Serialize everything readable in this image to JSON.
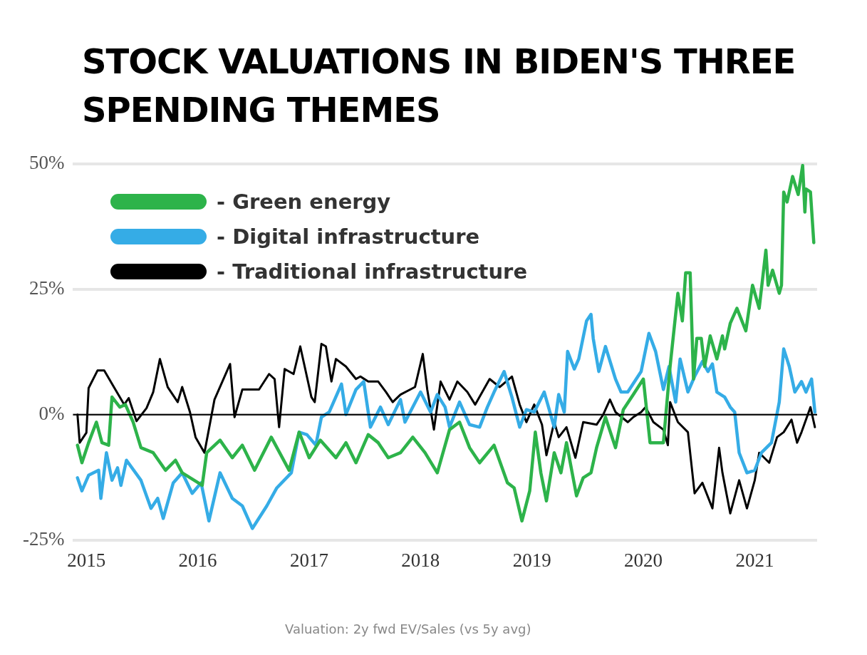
{
  "chart_data": {
    "type": "line",
    "title": "STOCK VALUATIONS IN BIDEN'S THREE SPENDING THEMES",
    "annotations": [
      "Valuation: 2y fwd EV/Sales (vs 5y avg)"
    ],
    "xlim": [
      2014.88,
      2021.56
    ],
    "xticks": [
      2015,
      2016,
      2017,
      2018,
      2019,
      2020,
      2021
    ],
    "ylim": [
      -25,
      50
    ],
    "yticks": [
      {
        "value": -25,
        "label": "-25%"
      },
      {
        "value": 0,
        "label": "0%"
      },
      {
        "value": 25,
        "label": "25%"
      },
      {
        "value": 50,
        "label": "50%"
      }
    ],
    "grid": "y",
    "legend": "top left",
    "marker": "none",
    "line_style": "solid",
    "ref_lines": [
      {
        "axis": "y",
        "value": 0,
        "label": null,
        "color": "#000000"
      }
    ],
    "series": [
      {
        "name": "- Green energy",
        "color": "#2db34a",
        "x": [
          2014.92,
          2014.96,
          2015.02,
          2015.09,
          2015.14,
          2015.2,
          2015.23,
          2015.3,
          2015.35,
          2015.42,
          2015.49,
          2015.6,
          2015.71,
          2015.8,
          2015.86,
          2016.04,
          2016.08,
          2016.2,
          2016.31,
          2016.4,
          2016.51,
          2016.66,
          2016.82,
          2016.91,
          2017.0,
          2017.1,
          2017.24,
          2017.33,
          2017.42,
          2017.53,
          2017.62,
          2017.71,
          2017.82,
          2017.93,
          2018.04,
          2018.15,
          2018.26,
          2018.35,
          2018.44,
          2018.53,
          2018.66,
          2018.78,
          2018.84,
          2018.91,
          2018.98,
          2019.03,
          2019.08,
          2019.13,
          2019.2,
          2019.26,
          2019.31,
          2019.4,
          2019.46,
          2019.53,
          2019.58,
          2019.66,
          2019.75,
          2019.82,
          2019.91,
          2020.0,
          2020.06,
          2020.18,
          2020.24,
          2020.31,
          2020.35,
          2020.38,
          2020.42,
          2020.45,
          2020.48,
          2020.52,
          2020.55,
          2020.6,
          2020.66,
          2020.71,
          2020.73,
          2020.78,
          2020.84,
          2020.92,
          2020.98,
          2021.04,
          2021.1,
          2021.12,
          2021.16,
          2021.22,
          2021.24,
          2021.26,
          2021.29,
          2021.34,
          2021.39,
          2021.43,
          2021.45,
          2021.46,
          2021.5,
          2021.53
        ],
        "values": [
          -6.1,
          -9.6,
          -5.6,
          -1.5,
          -5.6,
          -6.1,
          3.5,
          1.5,
          2.0,
          -1.5,
          -6.6,
          -7.6,
          -11.1,
          -9.1,
          -11.6,
          -14.1,
          -7.6,
          -5.1,
          -8.6,
          -6.1,
          -11.1,
          -4.5,
          -11.1,
          -3.5,
          -8.6,
          -5.1,
          -8.6,
          -5.6,
          -9.6,
          -4.0,
          -5.6,
          -8.6,
          -7.6,
          -4.5,
          -7.6,
          -11.6,
          -3.0,
          -1.5,
          -6.6,
          -9.6,
          -6.1,
          -13.6,
          -14.6,
          -21.2,
          -15.2,
          -3.5,
          -11.6,
          -17.2,
          -7.6,
          -11.6,
          -5.6,
          -16.2,
          -12.6,
          -11.6,
          -6.6,
          -0.5,
          -6.6,
          1.0,
          4.0,
          7.1,
          -5.6,
          -5.6,
          9.6,
          24.2,
          18.7,
          28.3,
          28.3,
          7.1,
          15.2,
          15.2,
          9.6,
          15.7,
          11.1,
          15.7,
          13.1,
          18.2,
          21.2,
          16.7,
          25.8,
          21.2,
          32.8,
          25.8,
          28.8,
          24.2,
          25.8,
          44.4,
          42.4,
          47.5,
          43.9,
          49.7,
          40.4,
          45.0,
          44.4,
          34.3
        ]
      },
      {
        "name": "- Digital infrastructure",
        "color": "#35ace6",
        "x": [
          2014.92,
          2014.96,
          2015.02,
          2015.11,
          2015.13,
          2015.18,
          2015.23,
          2015.28,
          2015.31,
          2015.36,
          2015.49,
          2015.58,
          2015.64,
          2015.69,
          2015.78,
          2015.86,
          2015.95,
          2016.03,
          2016.1,
          2016.2,
          2016.31,
          2016.4,
          2016.49,
          2016.62,
          2016.71,
          2016.84,
          2016.91,
          2016.98,
          2017.06,
          2017.11,
          2017.18,
          2017.29,
          2017.33,
          2017.42,
          2017.49,
          2017.55,
          2017.64,
          2017.71,
          2017.82,
          2017.86,
          2018.0,
          2018.09,
          2018.15,
          2018.22,
          2018.26,
          2018.35,
          2018.44,
          2018.53,
          2018.6,
          2018.66,
          2018.75,
          2018.82,
          2018.89,
          2018.95,
          2019.02,
          2019.11,
          2019.2,
          2019.24,
          2019.29,
          2019.32,
          2019.38,
          2019.42,
          2019.49,
          2019.53,
          2019.55,
          2019.6,
          2019.66,
          2019.75,
          2019.8,
          2019.86,
          2019.98,
          2020.05,
          2020.11,
          2020.18,
          2020.23,
          2020.29,
          2020.33,
          2020.4,
          2020.46,
          2020.53,
          2020.58,
          2020.62,
          2020.66,
          2020.73,
          2020.78,
          2020.82,
          2020.86,
          2020.93,
          2021.0,
          2021.06,
          2021.15,
          2021.22,
          2021.26,
          2021.31,
          2021.36,
          2021.42,
          2021.46,
          2021.51,
          2021.54
        ],
        "values": [
          -12.6,
          -15.2,
          -12.1,
          -11.1,
          -16.7,
          -7.6,
          -13.1,
          -10.6,
          -14.1,
          -9.1,
          -13.1,
          -18.7,
          -16.7,
          -20.7,
          -13.6,
          -11.6,
          -15.7,
          -13.6,
          -21.2,
          -11.6,
          -16.7,
          -18.2,
          -22.7,
          -18.2,
          -14.6,
          -11.6,
          -3.5,
          -4.0,
          -6.1,
          -0.5,
          0.5,
          6.1,
          0,
          5.0,
          6.6,
          -2.5,
          1.5,
          -2.0,
          3.0,
          -1.5,
          4.5,
          0.5,
          4.0,
          1.5,
          -2.5,
          2.5,
          -2.0,
          -2.5,
          1.5,
          4.5,
          8.6,
          3.5,
          -2.5,
          1.0,
          0.5,
          4.5,
          -2.5,
          4.0,
          0.5,
          12.6,
          9.1,
          11.1,
          18.7,
          20.0,
          15.2,
          8.6,
          13.6,
          7.1,
          4.5,
          4.5,
          8.6,
          16.2,
          12.6,
          5.0,
          9.6,
          2.5,
          11.1,
          4.5,
          7.6,
          10.6,
          8.6,
          10.1,
          4.5,
          3.5,
          1.5,
          0.5,
          -7.6,
          -11.6,
          -11.1,
          -7.6,
          -5.6,
          2.5,
          13.1,
          9.6,
          4.5,
          6.6,
          4.5,
          7.1,
          0.5
        ]
      },
      {
        "name": "- Traditional infrastructure",
        "color": "#000000",
        "x": [
          2014.92,
          2014.94,
          2015.0,
          2015.02,
          2015.1,
          2015.16,
          2015.26,
          2015.34,
          2015.38,
          2015.45,
          2015.54,
          2015.6,
          2015.66,
          2015.73,
          2015.82,
          2015.86,
          2015.93,
          2015.98,
          2016.06,
          2016.15,
          2016.29,
          2016.33,
          2016.4,
          2016.55,
          2016.64,
          2016.69,
          2016.73,
          2016.78,
          2016.86,
          2016.92,
          2017.02,
          2017.05,
          2017.11,
          2017.15,
          2017.2,
          2017.24,
          2017.33,
          2017.42,
          2017.46,
          2017.53,
          2017.62,
          2017.69,
          2017.75,
          2017.82,
          2017.95,
          2018.02,
          2018.06,
          2018.12,
          2018.18,
          2018.26,
          2018.33,
          2018.42,
          2018.49,
          2018.62,
          2018.71,
          2018.82,
          2018.89,
          2018.95,
          2019.02,
          2019.09,
          2019.13,
          2019.2,
          2019.24,
          2019.31,
          2019.39,
          2019.46,
          2019.58,
          2019.64,
          2019.7,
          2019.75,
          2019.86,
          2019.91,
          2019.98,
          2020.02,
          2020.09,
          2020.18,
          2020.22,
          2020.24,
          2020.31,
          2020.4,
          2020.46,
          2020.53,
          2020.62,
          2020.68,
          2020.71,
          2020.78,
          2020.86,
          2020.93,
          2021.0,
          2021.04,
          2021.13,
          2021.2,
          2021.26,
          2021.33,
          2021.38,
          2021.42,
          2021.5,
          2021.54
        ],
        "values": [
          0,
          -5.6,
          -3.6,
          5.3,
          8.8,
          8.8,
          5.0,
          2.0,
          3.3,
          -1.3,
          1.3,
          4.5,
          11.1,
          5.5,
          2.5,
          5.5,
          0.5,
          -4.5,
          -7.6,
          3.0,
          10.1,
          -0.5,
          5.0,
          5.0,
          8.1,
          7.1,
          -2.5,
          9.1,
          8.1,
          13.6,
          3.5,
          2.5,
          14.1,
          13.6,
          6.6,
          11.1,
          9.6,
          7.1,
          7.6,
          6.6,
          6.6,
          4.5,
          2.5,
          4.0,
          5.5,
          12.1,
          5.0,
          -3.0,
          6.6,
          3.0,
          6.6,
          4.5,
          2.0,
          7.1,
          5.5,
          7.6,
          2.0,
          -1.5,
          2.0,
          -2.0,
          -8.1,
          -1.5,
          -4.5,
          -2.5,
          -8.6,
          -1.5,
          -2.0,
          0,
          3.0,
          0.5,
          -1.5,
          -0.5,
          0.5,
          1.5,
          -1.5,
          -3.0,
          -6.1,
          2.5,
          -1.5,
          -3.5,
          -15.7,
          -13.6,
          -18.7,
          -6.6,
          -11.6,
          -19.7,
          -13.1,
          -18.7,
          -13.1,
          -7.6,
          -9.6,
          -4.5,
          -3.5,
          -1.0,
          -5.6,
          -3.5,
          1.5,
          -2.5
        ]
      }
    ]
  }
}
